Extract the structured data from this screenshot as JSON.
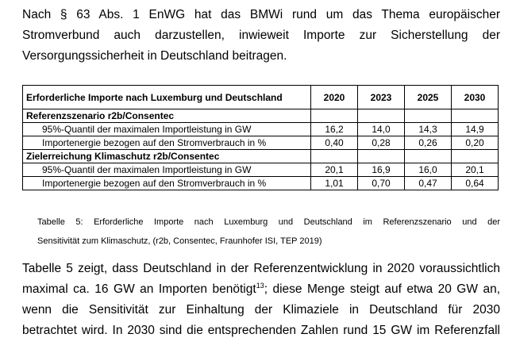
{
  "intro": {
    "lines": [
      "Nach § 63 Abs. 1 EnWG hat das BMWi rund um das Thema europäischer",
      "Stromverbund auch darzustellen, inwieweit Importe zur Sicherstellung der",
      "Versorgungssicherheit in Deutschland beitragen."
    ]
  },
  "table": {
    "header": {
      "label": "Erforderliche Importe nach Luxemburg und Deutschland",
      "years": [
        "2020",
        "2023",
        "2025",
        "2030"
      ]
    },
    "sections": [
      {
        "title": "Referenzszenario r2b/Consentec",
        "rows": [
          {
            "label": "95%-Quantil der maximalen Importleistung in GW",
            "values": [
              "16,2",
              "14,0",
              "14,3",
              "14,9"
            ]
          },
          {
            "label": "Importenergie bezogen auf den Stromverbrauch in %",
            "values": [
              "0,40",
              "0,28",
              "0,26",
              "0,20"
            ]
          }
        ]
      },
      {
        "title": "Zielerreichung Klimaschutz r2b/Consentec",
        "rows": [
          {
            "label": "95%-Quantil der maximalen Importleistung in GW",
            "values": [
              "20,1",
              "16,9",
              "16,0",
              "20,1"
            ]
          },
          {
            "label": "Importenergie bezogen auf den Stromverbrauch in %",
            "values": [
              "1,01",
              "0,70",
              "0,47",
              "0,64"
            ]
          }
        ]
      }
    ]
  },
  "caption": {
    "lines": [
      "Tabelle 5: Erforderliche Importe nach Luxemburg und Deutschland im Referenzszenario und der",
      "Sensitivität zum Klimaschutz, (r2b, Consentec, Fraunhofer ISI, TEP 2019)"
    ]
  },
  "body": {
    "line1": "Tabelle 5 zeigt, dass Deutschland in der Referenzentwicklung in 2020 voraussichtlich",
    "line2_before": "maximal ca. 16 GW an Importen benötigt",
    "footnote": "13",
    "line2_after": "; diese Menge steigt auf etwa 20 GW an,",
    "line3": "wenn die Sensitivität zur Einhaltung der Klimaziele in Deutschland für 2030",
    "line4": "betrachtet wird. In 2030 sind die entsprechenden Zahlen rund 15 GW im Referenzfall"
  }
}
